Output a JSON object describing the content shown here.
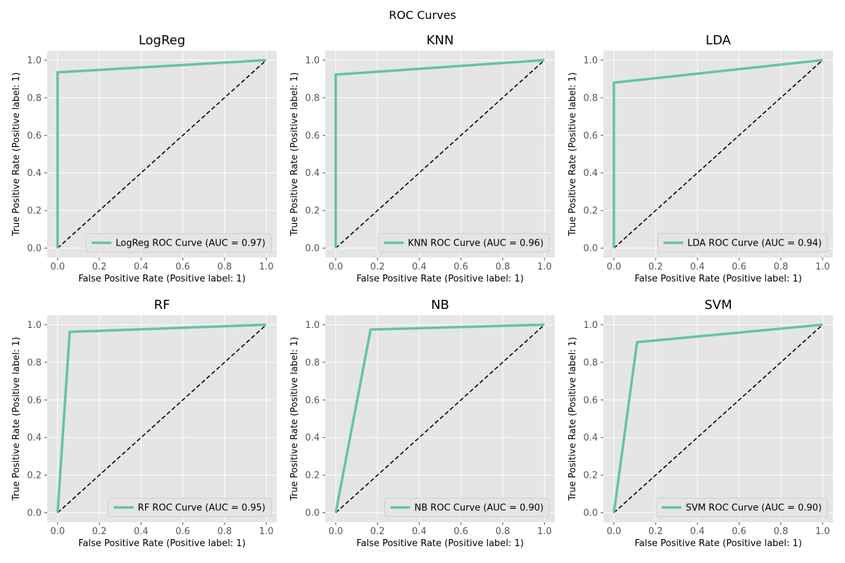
{
  "figure": {
    "title": "ROC Curves",
    "style": {
      "axes_bg": "#e5e5e5",
      "grid_color": "#ffffff",
      "curve_color": "#66c2a5",
      "diagonal_color": "#000000",
      "tick_color": "#555555",
      "legend_bg": "#e5e5e5",
      "legend_border": "#cccccc"
    }
  },
  "chart_data": [
    {
      "type": "line",
      "title": "LogReg",
      "xlabel": "False Positive Rate (Positive label: 1)",
      "ylabel": "True Positive Rate (Positive label: 1)",
      "xlim": [
        0,
        1
      ],
      "ylim": [
        0,
        1
      ],
      "xticks": [
        "0.0",
        "0.2",
        "0.4",
        "0.6",
        "0.8",
        "1.0"
      ],
      "yticks": [
        "0.0",
        "0.2",
        "0.4",
        "0.6",
        "0.8",
        "1.0"
      ],
      "grid": true,
      "legend_position": "lower-right",
      "series": [
        {
          "name": "LogReg ROC Curve (AUC = 0.97)",
          "x": [
            0,
            0,
            1
          ],
          "y": [
            0,
            0.935,
            1
          ]
        }
      ],
      "diagonal": {
        "x": [
          0,
          1
        ],
        "y": [
          0,
          1
        ],
        "style": "dashed"
      }
    },
    {
      "type": "line",
      "title": "KNN",
      "xlabel": "False Positive Rate (Positive label: 1)",
      "ylabel": "True Positive Rate (Positive label: 1)",
      "xlim": [
        0,
        1
      ],
      "ylim": [
        0,
        1
      ],
      "xticks": [
        "0.0",
        "0.2",
        "0.4",
        "0.6",
        "0.8",
        "1.0"
      ],
      "yticks": [
        "0.0",
        "0.2",
        "0.4",
        "0.6",
        "0.8",
        "1.0"
      ],
      "grid": true,
      "legend_position": "lower-right",
      "series": [
        {
          "name": "KNN ROC Curve (AUC = 0.96)",
          "x": [
            0,
            0,
            1
          ],
          "y": [
            0,
            0.923,
            1
          ]
        }
      ],
      "diagonal": {
        "x": [
          0,
          1
        ],
        "y": [
          0,
          1
        ],
        "style": "dashed"
      }
    },
    {
      "type": "line",
      "title": "LDA",
      "xlabel": "False Positive Rate (Positive label: 1)",
      "ylabel": "True Positive Rate (Positive label: 1)",
      "xlim": [
        0,
        1
      ],
      "ylim": [
        0,
        1
      ],
      "xticks": [
        "0.0",
        "0.2",
        "0.4",
        "0.6",
        "0.8",
        "1.0"
      ],
      "yticks": [
        "0.0",
        "0.2",
        "0.4",
        "0.6",
        "0.8",
        "1.0"
      ],
      "grid": true,
      "legend_position": "lower-right",
      "series": [
        {
          "name": "LDA ROC Curve (AUC = 0.94)",
          "x": [
            0,
            0,
            1
          ],
          "y": [
            0,
            0.88,
            1
          ]
        }
      ],
      "diagonal": {
        "x": [
          0,
          1
        ],
        "y": [
          0,
          1
        ],
        "style": "dashed"
      }
    },
    {
      "type": "line",
      "title": "RF",
      "xlabel": "False Positive Rate (Positive label: 1)",
      "ylabel": "True Positive Rate (Positive label: 1)",
      "xlim": [
        0,
        1
      ],
      "ylim": [
        0,
        1
      ],
      "xticks": [
        "0.0",
        "0.2",
        "0.4",
        "0.6",
        "0.8",
        "1.0"
      ],
      "yticks": [
        "0.0",
        "0.2",
        "0.4",
        "0.6",
        "0.8",
        "1.0"
      ],
      "grid": true,
      "legend_position": "lower-right",
      "series": [
        {
          "name": "RF ROC Curve (AUC = 0.95)",
          "x": [
            0,
            0.058,
            1
          ],
          "y": [
            0,
            0.962,
            1
          ]
        }
      ],
      "diagonal": {
        "x": [
          0,
          1
        ],
        "y": [
          0,
          1
        ],
        "style": "dashed"
      }
    },
    {
      "type": "line",
      "title": "NB",
      "xlabel": "False Positive Rate (Positive label: 1)",
      "ylabel": "True Positive Rate (Positive label: 1)",
      "xlim": [
        0,
        1
      ],
      "ylim": [
        0,
        1
      ],
      "xticks": [
        "0.0",
        "0.2",
        "0.4",
        "0.6",
        "0.8",
        "1.0"
      ],
      "yticks": [
        "0.0",
        "0.2",
        "0.4",
        "0.6",
        "0.8",
        "1.0"
      ],
      "grid": true,
      "legend_position": "lower-right",
      "series": [
        {
          "name": "NB ROC Curve (AUC = 0.90)",
          "x": [
            0,
            0.167,
            1
          ],
          "y": [
            0,
            0.974,
            1
          ]
        }
      ],
      "diagonal": {
        "x": [
          0,
          1
        ],
        "y": [
          0,
          1
        ],
        "style": "dashed"
      }
    },
    {
      "type": "line",
      "title": "SVM",
      "xlabel": "False Positive Rate (Positive label: 1)",
      "ylabel": "True Positive Rate (Positive label: 1)",
      "xlim": [
        0,
        1
      ],
      "ylim": [
        0,
        1
      ],
      "xticks": [
        "0.0",
        "0.2",
        "0.4",
        "0.6",
        "0.8",
        "1.0"
      ],
      "yticks": [
        "0.0",
        "0.2",
        "0.4",
        "0.6",
        "0.8",
        "1.0"
      ],
      "grid": true,
      "legend_position": "lower-right",
      "series": [
        {
          "name": "SVM ROC Curve (AUC = 0.90)",
          "x": [
            0,
            0.111,
            1
          ],
          "y": [
            0,
            0.907,
            1
          ]
        }
      ],
      "diagonal": {
        "x": [
          0,
          1
        ],
        "y": [
          0,
          1
        ],
        "style": "dashed"
      }
    }
  ]
}
